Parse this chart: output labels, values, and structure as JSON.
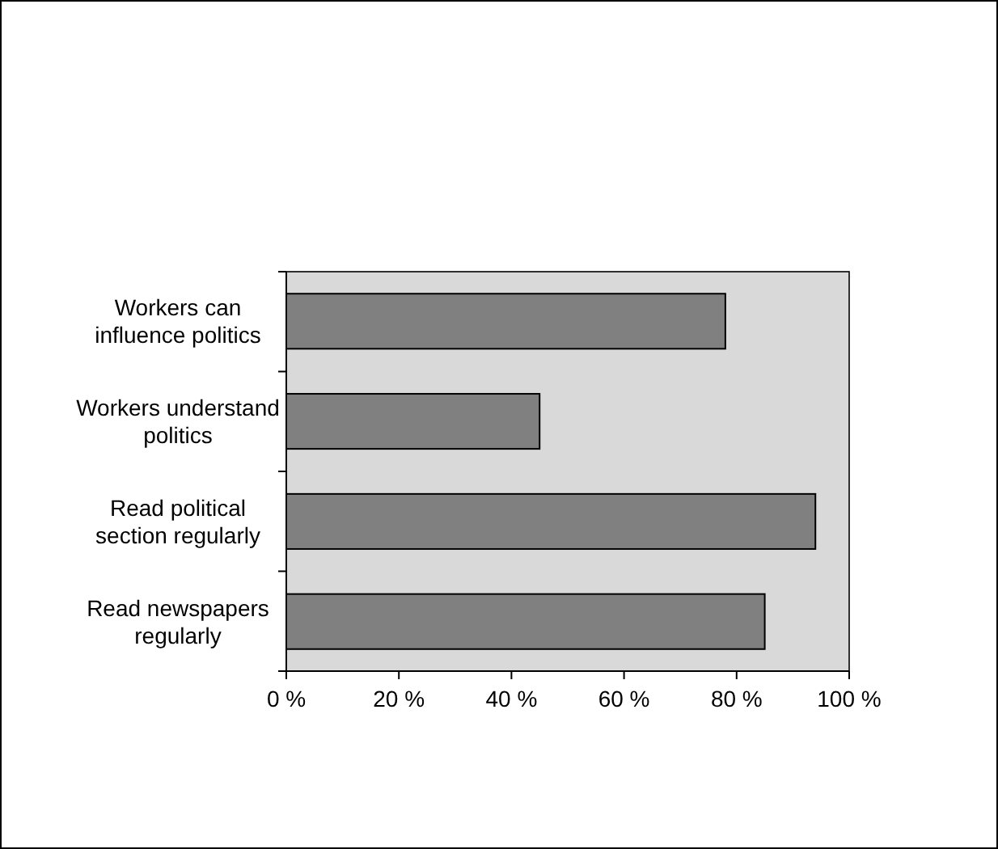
{
  "chart_data": {
    "type": "bar",
    "orientation": "horizontal",
    "categories": [
      "Workers can influence politics",
      "Workers understand politics",
      "Read political section regularly",
      "Read newspapers regularly"
    ],
    "values": [
      78,
      45,
      94,
      85
    ],
    "color": "#808080",
    "xlim": [
      0,
      100
    ],
    "xticks": [
      {
        "value": 0,
        "label": "0 %"
      },
      {
        "value": 20,
        "label": "20 %"
      },
      {
        "value": 40,
        "label": "40 %"
      },
      {
        "value": 60,
        "label": "60 %"
      },
      {
        "value": 80,
        "label": "80 %"
      },
      {
        "value": 100,
        "label": "100 %"
      }
    ],
    "grid": false
  }
}
